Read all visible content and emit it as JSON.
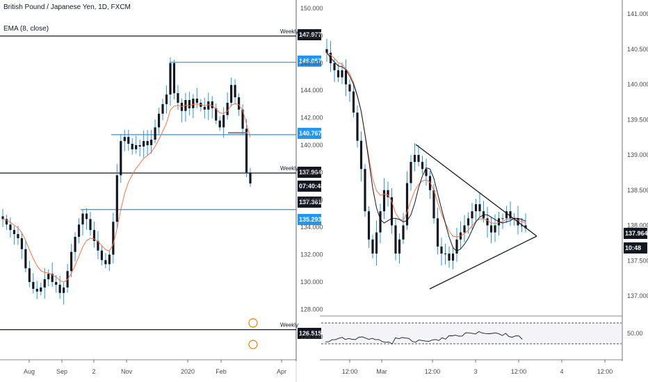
{
  "left_panel": {
    "title": "British Pound / Japanese Yen, 1D, FXCM",
    "indicator": "EMA (8, close)",
    "weekly_label": "Weekly",
    "price_labels": [
      {
        "value": "147.977",
        "color": "#131722"
      },
      {
        "value": "146.057",
        "color": "#2196f3"
      },
      {
        "value": "140.767",
        "color": "#2196f3"
      },
      {
        "value": "137.964",
        "color": "#131722"
      },
      {
        "value": "07:40:48",
        "color": "#131722"
      },
      {
        "value": "137.361",
        "color": "#131722"
      },
      {
        "value": "135.293",
        "color": "#2196f3"
      },
      {
        "value": "126.515",
        "color": "#131722"
      }
    ]
  },
  "right_panel": {
    "price_labels": [
      {
        "value": "137.964",
        "color": "#131722"
      },
      {
        "value": "10:48",
        "color": "#131722"
      }
    ],
    "rsi_label": "50.00"
  },
  "colors": {
    "candle": "#131722",
    "wick": "#2196f3",
    "ema": "#ff7043",
    "sma": "#131722",
    "level_blue": "#2196f3",
    "level_black": "#131722"
  },
  "chart_data": [
    {
      "type": "candlestick",
      "symbol": "GBPJPY",
      "timeframe": "1D",
      "ylim": [
        124.5,
        150.5
      ],
      "y_ticks": [
        "150.000",
        "148.000",
        "146.000",
        "144.000",
        "142.000",
        "140.000",
        "138.000",
        "136.000",
        "134.000",
        "132.000",
        "130.000",
        "128.000",
        "126.000"
      ],
      "x_ticks": [
        "Aug",
        "Sep",
        "2",
        "Nov",
        "2020",
        "Feb",
        "Apr"
      ],
      "horizontal_levels": [
        {
          "price": 147.977,
          "label": "Weekly",
          "color": "black"
        },
        {
          "price": 146.057,
          "color": "blue"
        },
        {
          "price": 140.767,
          "color": "blue"
        },
        {
          "price": 137.964,
          "label": "Weekly",
          "color": "black"
        },
        {
          "price": 135.293,
          "color": "blue"
        },
        {
          "price": 126.515,
          "label": "Weekly",
          "color": "black"
        }
      ],
      "closes_approx": [
        134.6,
        134.2,
        133.8,
        133.5,
        133.2,
        132.4,
        131.0,
        130.0,
        129.5,
        129.3,
        129.6,
        130.2,
        130.6,
        130.0,
        129.8,
        129.2,
        129.6,
        130.8,
        132.2,
        133.3,
        134.2,
        135.0,
        134.6,
        133.8,
        133.0,
        132.3,
        131.6,
        131.3,
        132.0,
        134.4,
        137.8,
        140.3,
        140.6,
        140.1,
        139.7,
        140.0,
        139.9,
        140.3,
        140.0,
        140.4,
        141.3,
        142.3,
        143.0,
        143.7,
        146.0,
        143.8,
        143.1,
        142.5,
        143.3,
        142.7,
        143.4,
        143.1,
        142.8,
        142.6,
        143.2,
        142.7,
        141.8,
        141.3,
        142.2,
        143.1,
        144.4,
        143.5,
        142.6,
        141.2,
        138.0,
        137.2
      ]
    },
    {
      "type": "candlestick",
      "timeframe": "intraday",
      "ylim": [
        136.85,
        141.2
      ],
      "y_ticks": [
        "141.000",
        "140.500",
        "140.000",
        "139.500",
        "139.000",
        "138.500",
        "138.000",
        "137.500",
        "137.000"
      ],
      "x_ticks": [
        "12:00",
        "Mar",
        "12:00",
        "3",
        "12:00",
        "4",
        "12:00"
      ],
      "pattern": "symmetrical triangle",
      "closes_approx": [
        140.45,
        140.3,
        140.2,
        140.1,
        140.2,
        140.0,
        139.9,
        139.6,
        139.2,
        138.8,
        138.2,
        137.8,
        137.6,
        137.9,
        138.2,
        138.5,
        138.4,
        138.0,
        137.6,
        137.8,
        138.0,
        138.6,
        138.9,
        139.0,
        138.9,
        138.8,
        138.7,
        138.5,
        138.1,
        137.7,
        137.6,
        137.6,
        137.5,
        137.6,
        137.8,
        137.9,
        138.0,
        138.1,
        138.2,
        138.3,
        138.2,
        138.1,
        138.0,
        137.9,
        138.0,
        138.1,
        138.1,
        138.2,
        138.1,
        138.1,
        138.0,
        138.0,
        137.96
      ],
      "indicator": {
        "name": "RSI",
        "level": 50.0
      }
    }
  ]
}
